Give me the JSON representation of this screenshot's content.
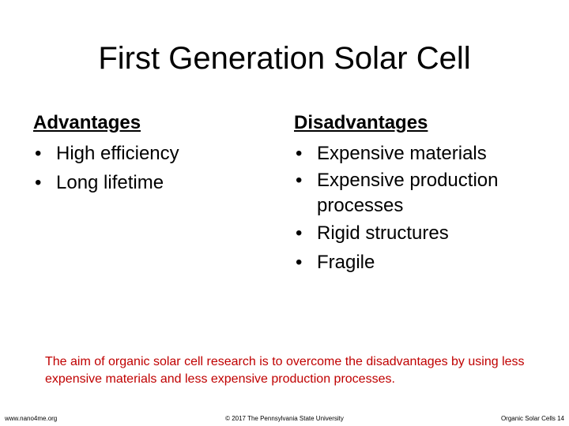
{
  "title": "First Generation Solar Cell",
  "advantages": {
    "heading": "Advantages",
    "items": [
      "High efficiency",
      "Long lifetime"
    ]
  },
  "disadvantages": {
    "heading": "Disadvantages",
    "items": [
      "Expensive materials",
      "Expensive production processes",
      "Rigid structures",
      "Fragile"
    ]
  },
  "note": "The aim of organic solar cell research is to overcome the disadvantages by using less expensive materials and less expensive production processes.",
  "footer": {
    "left": "www.nano4me.org",
    "center": "© 2017 The Pennsylvania State University",
    "right": "Organic Solar Cells 14"
  }
}
